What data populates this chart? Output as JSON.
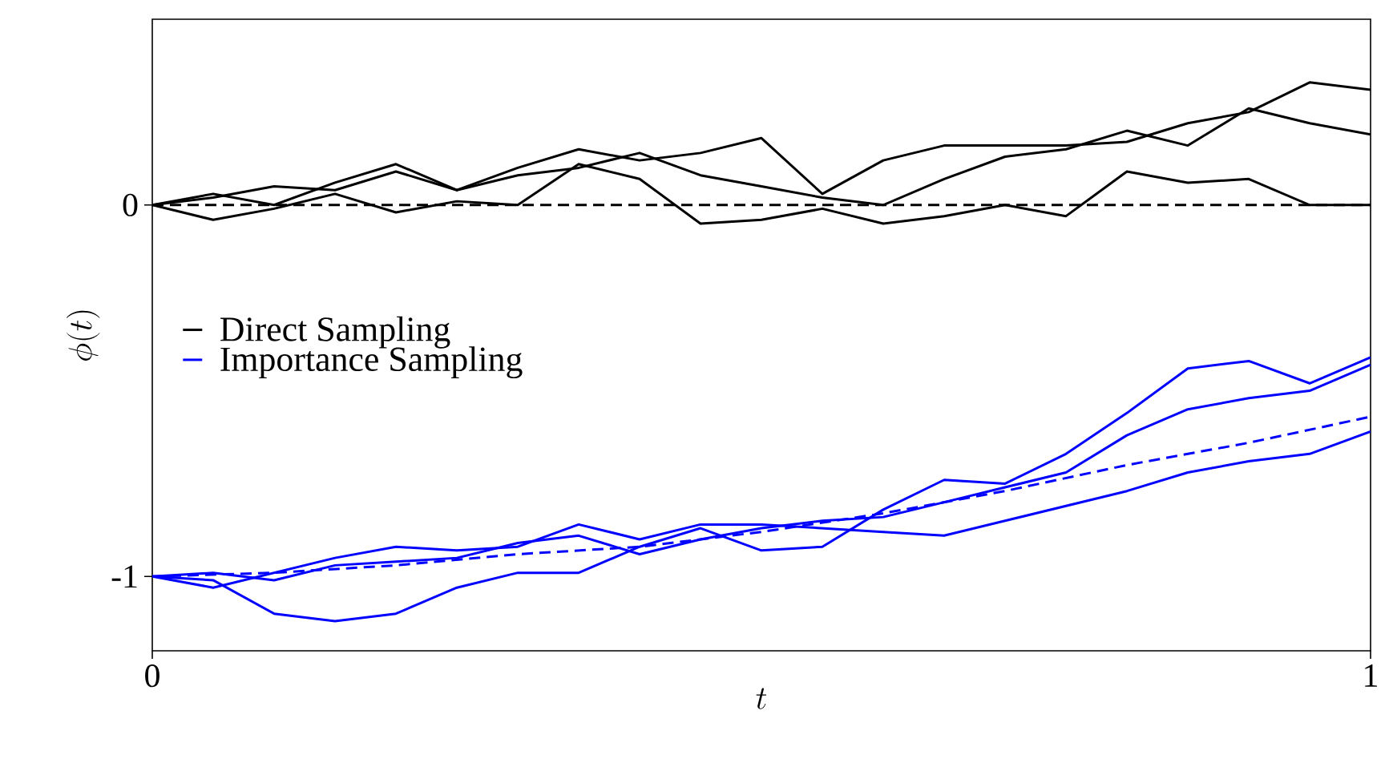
{
  "chart_data": {
    "type": "line",
    "xlabel": "t",
    "ylabel": "\\phi(t)",
    "x": [
      0,
      0.05,
      0.1,
      0.15,
      0.2,
      0.25,
      0.3,
      0.35,
      0.4,
      0.45,
      0.5,
      0.55,
      0.6,
      0.65,
      0.7,
      0.75,
      0.8,
      0.85,
      0.9,
      0.95,
      1
    ],
    "xlim": [
      0,
      1
    ],
    "ylim": [
      -1.2,
      0.5
    ],
    "xticks": [
      0,
      1
    ],
    "yticks": [
      -1,
      0
    ],
    "legend": "left",
    "series": [
      {
        "name": "Direct Sampling",
        "color": "#000000",
        "values": [
          0,
          0.03,
          0.0,
          0.06,
          0.11,
          0.04,
          0.1,
          0.15,
          0.12,
          0.14,
          0.18,
          0.03,
          0.12,
          0.16,
          0.16,
          0.16,
          0.17,
          0.22,
          0.25,
          0.33,
          0.31
        ]
      },
      {
        "color": "#000000",
        "values": [
          0,
          0.02,
          0.05,
          0.04,
          0.09,
          0.04,
          0.08,
          0.1,
          0.14,
          0.08,
          0.05,
          0.02,
          0.0,
          0.07,
          0.13,
          0.15,
          0.2,
          0.16,
          0.26,
          0.22,
          0.19
        ]
      },
      {
        "color": "#000000",
        "values": [
          0,
          -0.04,
          -0.01,
          0.03,
          -0.02,
          0.01,
          0.0,
          0.11,
          0.07,
          -0.05,
          -0.04,
          -0.01,
          -0.05,
          -0.03,
          0.0,
          -0.03,
          0.09,
          0.06,
          0.07,
          0.0,
          0.0
        ]
      },
      {
        "color": "#000000",
        "line_style": "dashed",
        "x": [
          0,
          1
        ],
        "values": [
          0,
          0
        ]
      },
      {
        "name": "Importance Sampling",
        "color": "#0000ff",
        "values": [
          -1.0,
          -1.01,
          -1.1,
          -1.12,
          -1.1,
          -1.03,
          -0.99,
          -0.99,
          -0.92,
          -0.87,
          -0.93,
          -0.92,
          -0.82,
          -0.74,
          -0.75,
          -0.67,
          -0.56,
          -0.44,
          -0.42,
          -0.48,
          -0.41
        ]
      },
      {
        "color": "#0000ff",
        "values": [
          -1.0,
          -0.99,
          -1.01,
          -0.97,
          -0.96,
          -0.95,
          -0.91,
          -0.89,
          -0.94,
          -0.9,
          -0.87,
          -0.85,
          -0.84,
          -0.8,
          -0.76,
          -0.72,
          -0.62,
          -0.55,
          -0.52,
          -0.5,
          -0.43
        ]
      },
      {
        "color": "#0000ff",
        "values": [
          -1.0,
          -1.03,
          -0.99,
          -0.95,
          -0.92,
          -0.93,
          -0.92,
          -0.86,
          -0.9,
          -0.86,
          -0.86,
          -0.87,
          -0.88,
          -0.89,
          -0.85,
          -0.81,
          -0.77,
          -0.72,
          -0.69,
          -0.67,
          -0.61
        ]
      },
      {
        "color": "#0000ff",
        "line_style": "dashed",
        "x": [
          0,
          0.1,
          0.2,
          0.3,
          0.4,
          0.5,
          0.6,
          0.7,
          0.8,
          0.9,
          1
        ],
        "values": [
          -1.0,
          -0.99,
          -0.97,
          -0.94,
          -0.92,
          -0.88,
          -0.83,
          -0.77,
          -0.7,
          -0.64,
          -0.57
        ]
      }
    ]
  }
}
